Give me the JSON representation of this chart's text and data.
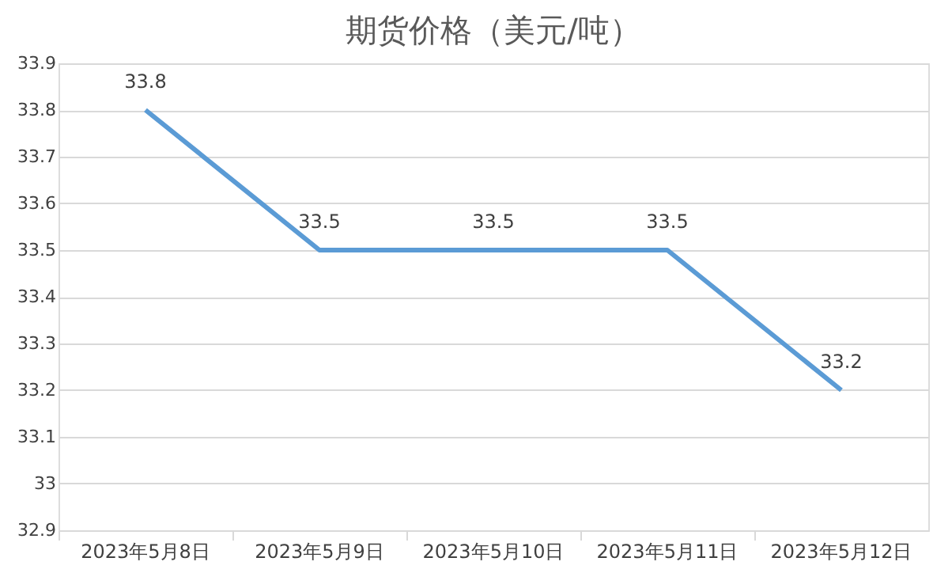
{
  "chart_data": {
    "type": "line",
    "title": "期货价格（美元/吨）",
    "categories": [
      "2023年5月8日",
      "2023年5月9日",
      "2023年5月10日",
      "2023年5月11日",
      "2023年5月12日"
    ],
    "series": [
      {
        "color": "#5b9bd5",
        "values": [
          33.8,
          33.5,
          33.5,
          33.5,
          33.2
        ]
      }
    ],
    "ylim": [
      32.9,
      33.9
    ],
    "yticks": [
      32.9,
      33,
      33.1,
      33.2,
      33.3,
      33.4,
      33.5,
      33.6,
      33.7,
      33.8,
      33.9
    ],
    "grid": "y",
    "marker": "none",
    "line_style": "solid",
    "data_labels": true
  }
}
